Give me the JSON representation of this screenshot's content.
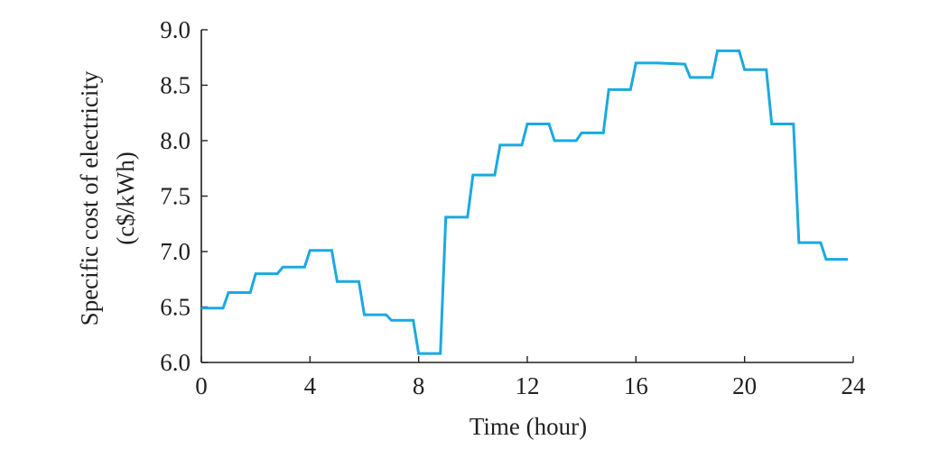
{
  "chart_data": {
    "type": "line",
    "title": "",
    "xlabel": "Time (hour)",
    "ylabel_lines": [
      "Specific cost of electricity",
      "(c$/kWh)"
    ],
    "xlim": [
      0,
      24
    ],
    "ylim": [
      6.0,
      9.0
    ],
    "xticks": [
      0,
      4,
      8,
      12,
      16,
      20,
      24
    ],
    "xtick_labels": [
      "0",
      "4",
      "8",
      "12",
      "16",
      "20",
      "24"
    ],
    "yticks": [
      6.0,
      6.5,
      7.0,
      7.5,
      8.0,
      8.5,
      9.0
    ],
    "ytick_labels": [
      "6.0",
      "6.5",
      "7.0",
      "7.5",
      "8.0",
      "8.5",
      "9.0"
    ],
    "grid": false,
    "series": [
      {
        "color": "#1ba9e1",
        "points": [
          [
            0,
            6.49
          ],
          [
            0.8,
            6.49
          ],
          [
            1.0,
            6.63
          ],
          [
            1.8,
            6.63
          ],
          [
            2.0,
            6.8
          ],
          [
            2.8,
            6.8
          ],
          [
            3.0,
            6.86
          ],
          [
            3.8,
            6.86
          ],
          [
            4.0,
            7.01
          ],
          [
            4.8,
            7.01
          ],
          [
            5.0,
            6.73
          ],
          [
            5.8,
            6.73
          ],
          [
            6.0,
            6.43
          ],
          [
            6.8,
            6.43
          ],
          [
            7.0,
            6.38
          ],
          [
            7.8,
            6.38
          ],
          [
            8.0,
            6.08
          ],
          [
            8.8,
            6.08
          ],
          [
            9.0,
            7.31
          ],
          [
            9.8,
            7.31
          ],
          [
            10.0,
            7.69
          ],
          [
            10.8,
            7.69
          ],
          [
            11.0,
            7.96
          ],
          [
            11.8,
            7.96
          ],
          [
            12.0,
            8.15
          ],
          [
            12.8,
            8.15
          ],
          [
            13.0,
            8.0
          ],
          [
            13.8,
            8.0
          ],
          [
            14.0,
            8.07
          ],
          [
            14.8,
            8.07
          ],
          [
            15.0,
            8.46
          ],
          [
            15.8,
            8.46
          ],
          [
            16.0,
            8.7
          ],
          [
            16.8,
            8.7
          ],
          [
            17.8,
            8.69
          ],
          [
            18.0,
            8.57
          ],
          [
            18.8,
            8.57
          ],
          [
            19.0,
            8.81
          ],
          [
            19.8,
            8.81
          ],
          [
            20.0,
            8.64
          ],
          [
            20.8,
            8.64
          ],
          [
            21.0,
            8.15
          ],
          [
            21.8,
            8.15
          ],
          [
            22.0,
            7.08
          ],
          [
            22.8,
            7.08
          ],
          [
            23.0,
            6.93
          ],
          [
            23.8,
            6.93
          ]
        ]
      }
    ]
  }
}
